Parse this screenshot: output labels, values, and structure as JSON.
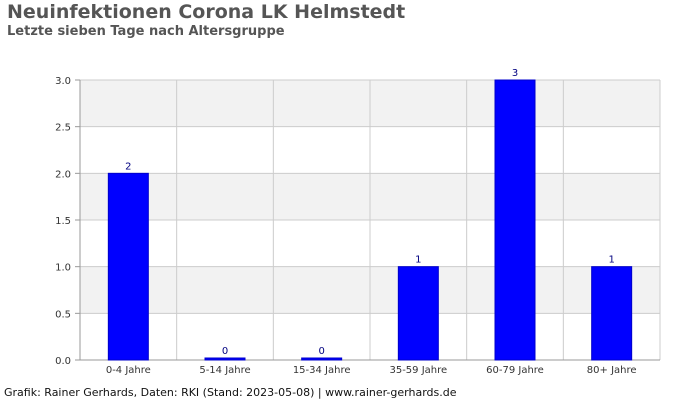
{
  "title": "Neuinfektionen Corona LK Helmstedt",
  "subtitle": "Letzte sieben Tage nach Altersgruppe",
  "footer": "Grafik: Rainer Gerhards, Daten: RKI (Stand: 2023-05-08) | www.rainer-gerhards.de",
  "chart_data": {
    "type": "bar",
    "categories": [
      "0-4 Jahre",
      "5-14 Jahre",
      "15-34 Jahre",
      "35-59 Jahre",
      "60-79 Jahre",
      "80+ Jahre"
    ],
    "values": [
      2,
      0,
      0,
      1,
      3,
      1
    ],
    "data_labels": [
      "2",
      "0",
      "0",
      "1",
      "3",
      "1"
    ],
    "y_ticks": [
      "0.0",
      "0.5",
      "1.0",
      "1.5",
      "2.0",
      "2.5",
      "3.0"
    ],
    "ylim": [
      0,
      3
    ],
    "grid": true,
    "colors": {
      "bar": "#0000ff",
      "label": "#000080",
      "band": "#f2f2f2",
      "grid": "#cccccc",
      "axis": "#999999",
      "tick_text": "#333333"
    }
  }
}
